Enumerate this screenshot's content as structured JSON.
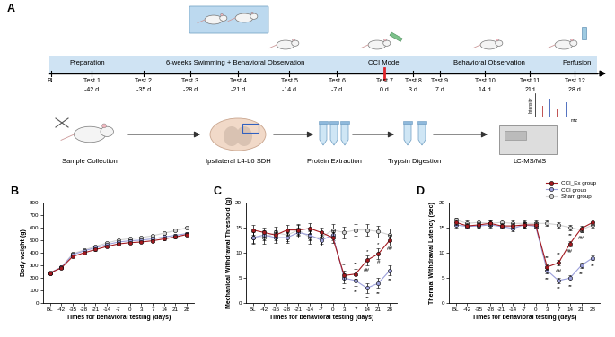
{
  "diagram": {
    "label": "A",
    "phases": [
      {
        "text": "Preparation"
      },
      {
        "text": "6-weeks Swimming + Behavioral Observation"
      },
      {
        "text": "CCI Model",
        "color": "#e0262b"
      },
      {
        "text": "Behavioral Observation"
      },
      {
        "text": "Perfusion"
      }
    ],
    "timeline": [
      {
        "label": "BL"
      },
      {
        "label": "Test 1",
        "day": "-42 d"
      },
      {
        "label": "Test 2",
        "day": "-35 d"
      },
      {
        "label": "Test 3",
        "day": "-28 d"
      },
      {
        "label": "Test 4",
        "day": "-21 d"
      },
      {
        "label": "Test 5",
        "day": "-14 d"
      },
      {
        "label": "Test 6",
        "day": "-7 d"
      },
      {
        "label": "Test 7",
        "day": "0 d"
      },
      {
        "label": "Test 8",
        "day": "3 d"
      },
      {
        "label": "Test 9",
        "day": "7 d"
      },
      {
        "label": "Test 10",
        "day": "14 d"
      },
      {
        "label": "Test 11",
        "day": "21d"
      },
      {
        "label": "Test 12",
        "day": "28 d"
      }
    ],
    "workflow": [
      {
        "text": "Sample Collection"
      },
      {
        "text": "Ipsilateral L4-L6 SDH"
      },
      {
        "text": "Protein Extraction"
      },
      {
        "text": "Trypsin Digestion"
      },
      {
        "text": "LC-MS/MS"
      }
    ],
    "spectrum": {
      "x_label": "m/z",
      "y_label": "Intensity"
    }
  },
  "chart_data": [
    {
      "type": "line",
      "title": "B",
      "x_label": "Times for behavioral testing (days)",
      "y_label": "Body weight (g)",
      "categories": [
        "BL",
        "-42",
        "-35",
        "-28",
        "-21",
        "-14",
        "-7",
        "0",
        "3",
        "7",
        "14",
        "21",
        "28"
      ],
      "ylim": [
        0,
        800
      ],
      "yticks": [
        0,
        100,
        200,
        300,
        400,
        500,
        600,
        700,
        800
      ],
      "grid": false,
      "series": [
        {
          "name": "CCI_Ex group",
          "color": "#a3191f",
          "marker": "circle",
          "values": [
            240,
            280,
            370,
            400,
            425,
            450,
            470,
            480,
            485,
            495,
            510,
            525,
            545
          ],
          "errors": [
            8,
            8,
            8,
            8,
            8,
            8,
            8,
            8,
            8,
            8,
            8,
            8,
            8
          ]
        },
        {
          "name": "CCI group",
          "color": "#9b9fdb",
          "marker": "circle",
          "values": [
            240,
            283,
            385,
            415,
            440,
            465,
            485,
            495,
            500,
            510,
            525,
            538,
            552
          ],
          "errors": [
            8,
            8,
            8,
            8,
            8,
            8,
            8,
            8,
            8,
            8,
            8,
            8,
            8
          ]
        },
        {
          "name": "Sham group",
          "color": "#d3d3d3",
          "marker": "circle",
          "values": [
            242,
            285,
            392,
            422,
            450,
            478,
            500,
            512,
            520,
            535,
            555,
            575,
            598
          ],
          "errors": [
            8,
            8,
            8,
            8,
            8,
            8,
            8,
            8,
            8,
            8,
            8,
            8,
            8
          ]
        }
      ],
      "annotations": []
    },
    {
      "type": "line",
      "title": "C",
      "x_label": "Times for behavioral testing (days)",
      "y_label": "Mechanical Withdrawal Threshold (g)",
      "categories": [
        "BL",
        "-42",
        "-35",
        "-28",
        "-21",
        "-14",
        "-7",
        "0",
        "3",
        "7",
        "14",
        "21",
        "28"
      ],
      "ylim": [
        0,
        20
      ],
      "yticks": [
        0,
        5,
        10,
        15,
        20
      ],
      "grid": false,
      "series": [
        {
          "name": "CCI_Ex group",
          "color": "#a3191f",
          "marker": "circle",
          "values": [
            14.5,
            14,
            13.5,
            14.5,
            14.5,
            14.8,
            14,
            13,
            5.5,
            5.8,
            8.5,
            9.8,
            12.5
          ],
          "errors": [
            1,
            1,
            1,
            1,
            1,
            1,
            1,
            1,
            1,
            1,
            1,
            1,
            1
          ]
        },
        {
          "name": "CCI group",
          "color": "#9b9fdb",
          "marker": "circle",
          "values": [
            13,
            13.5,
            13,
            13,
            14,
            13.5,
            12.5,
            13.5,
            5,
            4.5,
            3,
            4,
            6.5
          ],
          "errors": [
            1,
            1,
            1,
            1,
            1,
            1,
            1,
            1,
            1,
            1,
            1,
            1,
            1
          ]
        },
        {
          "name": "Sham group",
          "color": "#d3d3d3",
          "marker": "circle",
          "values": [
            13,
            13,
            14,
            13.5,
            14.5,
            13,
            13,
            14.5,
            14,
            14.5,
            14.5,
            14.2,
            13.5
          ],
          "errors": [
            1.2,
            1.2,
            1.2,
            1.2,
            1.2,
            1.2,
            1.2,
            1.2,
            1.2,
            1.2,
            1.2,
            1.2,
            1.2
          ]
        }
      ],
      "annotations": [
        {
          "x": "3",
          "y": 7.6,
          "text": "**"
        },
        {
          "x": "3",
          "y": 2.8,
          "text": "**"
        },
        {
          "x": "7",
          "y": 7.8,
          "text": "**"
        },
        {
          "x": "7",
          "y": 2.3,
          "text": "**"
        },
        {
          "x": "14",
          "y": 10.2,
          "text": "*"
        },
        {
          "x": "14",
          "y": 6.6,
          "text": "##"
        },
        {
          "x": "14",
          "y": 1.0,
          "text": "**"
        },
        {
          "x": "21",
          "y": 11.6,
          "text": "*"
        },
        {
          "x": "21",
          "y": 8.2,
          "text": "#"
        },
        {
          "x": "21",
          "y": 2.0,
          "text": "**"
        },
        {
          "x": "28",
          "y": 10.8,
          "text": "##"
        },
        {
          "x": "28",
          "y": 4.6,
          "text": "**"
        }
      ]
    },
    {
      "type": "line",
      "title": "D",
      "x_label": "Times for behavioral testing (days)",
      "y_label": "Thermal Withdrawal Latency (sec)",
      "categories": [
        "BL",
        "-42",
        "-35",
        "-28",
        "-21",
        "-14",
        "-7",
        "0",
        "3",
        "7",
        "14",
        "21",
        "28"
      ],
      "ylim": [
        0,
        20
      ],
      "yticks": [
        0,
        5,
        10,
        15,
        20
      ],
      "grid": false,
      "legend": "upper right",
      "series": [
        {
          "name": "CCI_Ex group",
          "color": "#a3191f",
          "marker": "circle",
          "values": [
            16,
            15.3,
            15.5,
            15.8,
            15.3,
            15.3,
            15.5,
            15.5,
            7.2,
            8,
            11.8,
            14.8,
            16
          ],
          "errors": [
            0.5,
            0.5,
            0.5,
            0.5,
            0.5,
            0.5,
            0.5,
            0.5,
            0.5,
            0.5,
            0.5,
            0.5,
            0.5
          ]
        },
        {
          "name": "CCI group",
          "color": "#9b9fdb",
          "marker": "circle",
          "values": [
            15.5,
            15.2,
            15.3,
            15.5,
            15.2,
            14.8,
            15.5,
            15.2,
            6.5,
            4.5,
            5,
            7.5,
            9
          ],
          "errors": [
            0.5,
            0.5,
            0.5,
            0.5,
            0.5,
            0.5,
            0.5,
            0.5,
            0.5,
            0.5,
            0.5,
            0.5,
            0.5
          ]
        },
        {
          "name": "Sham group",
          "color": "#d3d3d3",
          "marker": "circle",
          "values": [
            16.5,
            15.8,
            16,
            15.8,
            16,
            15.8,
            15.8,
            15.8,
            15.8,
            15.5,
            15,
            14.5,
            15.5
          ],
          "errors": [
            0.5,
            0.5,
            0.5,
            0.5,
            0.5,
            0.5,
            0.5,
            0.5,
            0.5,
            0.5,
            0.5,
            0.5,
            0.5
          ]
        }
      ],
      "annotations": [
        {
          "x": "3",
          "y": 9.0,
          "text": "**"
        },
        {
          "x": "3",
          "y": 4.8,
          "text": "**"
        },
        {
          "x": "7",
          "y": 9.8,
          "text": "**"
        },
        {
          "x": "7",
          "y": 6.3,
          "text": "##"
        },
        {
          "x": "7",
          "y": 3.0,
          "text": "**"
        },
        {
          "x": "14",
          "y": 13.4,
          "text": "**"
        },
        {
          "x": "14",
          "y": 10.3,
          "text": "##"
        },
        {
          "x": "14",
          "y": 3.4,
          "text": "**"
        },
        {
          "x": "21",
          "y": 12.9,
          "text": "##"
        },
        {
          "x": "21",
          "y": 5.9,
          "text": "**"
        },
        {
          "x": "28",
          "y": 7.4,
          "text": "**"
        }
      ]
    }
  ]
}
